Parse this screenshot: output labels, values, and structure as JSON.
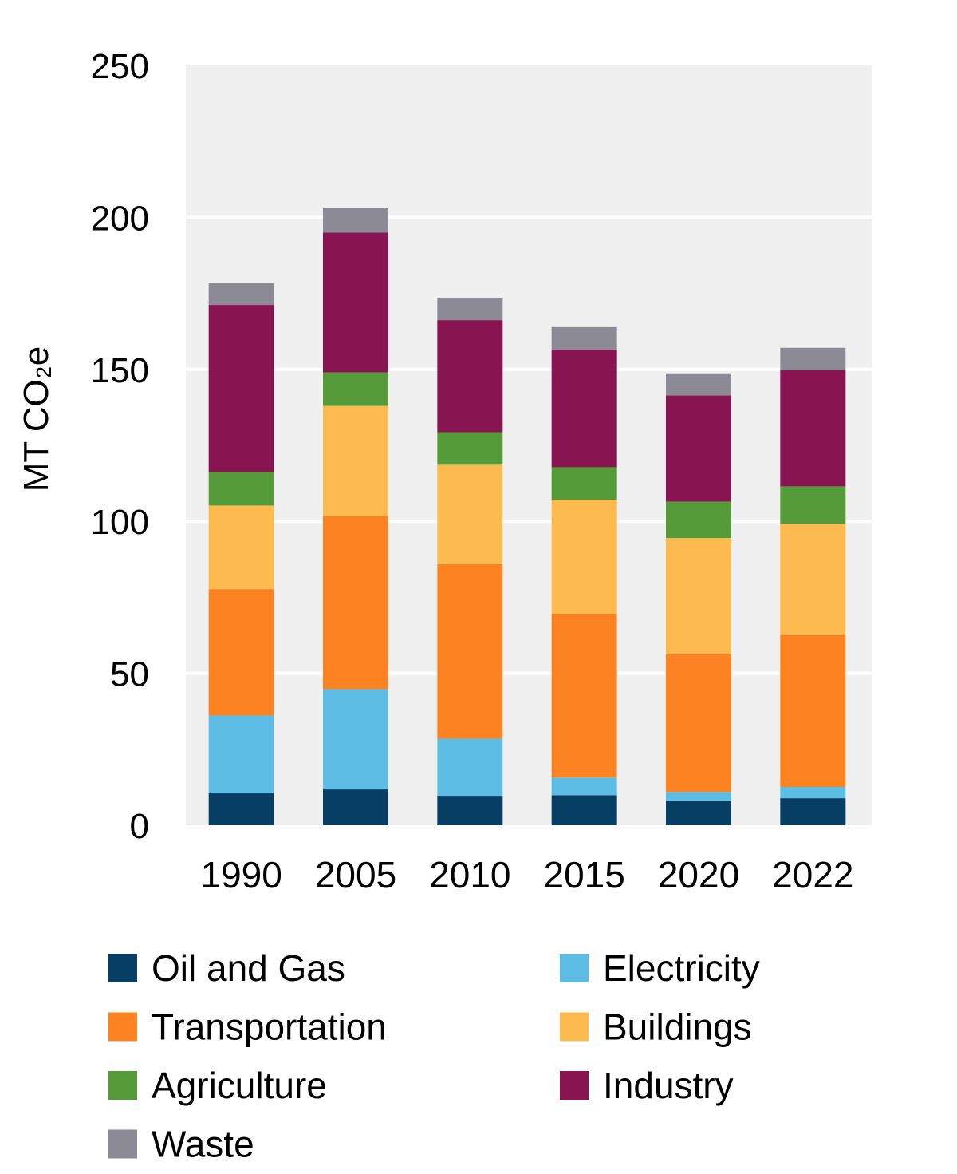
{
  "chart_data": {
    "type": "bar",
    "stacked": true,
    "title": "",
    "xlabel": "",
    "ylabel": "MT CO₂e",
    "ylim": [
      0,
      250
    ],
    "yticks": [
      0,
      50,
      100,
      150,
      200,
      250
    ],
    "grid": true,
    "legend_position": "bottom",
    "plot_background": "#f0f0f0",
    "categories": [
      "1990",
      "2005",
      "2010",
      "2015",
      "2020",
      "2022"
    ],
    "series": [
      {
        "name": "Oil and Gas",
        "color": "#063f63",
        "values": [
          10.5,
          11.8,
          9.7,
          9.9,
          7.9,
          8.9
        ]
      },
      {
        "name": "Electricity",
        "color": "#5dbde5",
        "values": [
          25.6,
          33.0,
          18.8,
          5.8,
          3.1,
          3.7
        ]
      },
      {
        "name": "Transportation",
        "color": "#fd8322",
        "values": [
          41.6,
          57.0,
          57.4,
          53.9,
          45.3,
          50.0
        ]
      },
      {
        "name": "Buildings",
        "color": "#fdbb4f",
        "values": [
          27.5,
          36.2,
          32.7,
          37.5,
          38.2,
          36.6
        ]
      },
      {
        "name": "Agriculture",
        "color": "#569b39",
        "values": [
          11.0,
          11.0,
          10.7,
          10.7,
          12.0,
          12.3
        ]
      },
      {
        "name": "Industry",
        "color": "#881451",
        "values": [
          55.0,
          46.0,
          36.9,
          38.7,
          34.9,
          38.2
        ]
      },
      {
        "name": "Waste",
        "color": "#8c8b95",
        "values": [
          7.3,
          8.0,
          7.1,
          7.4,
          7.3,
          7.4
        ]
      }
    ]
  }
}
